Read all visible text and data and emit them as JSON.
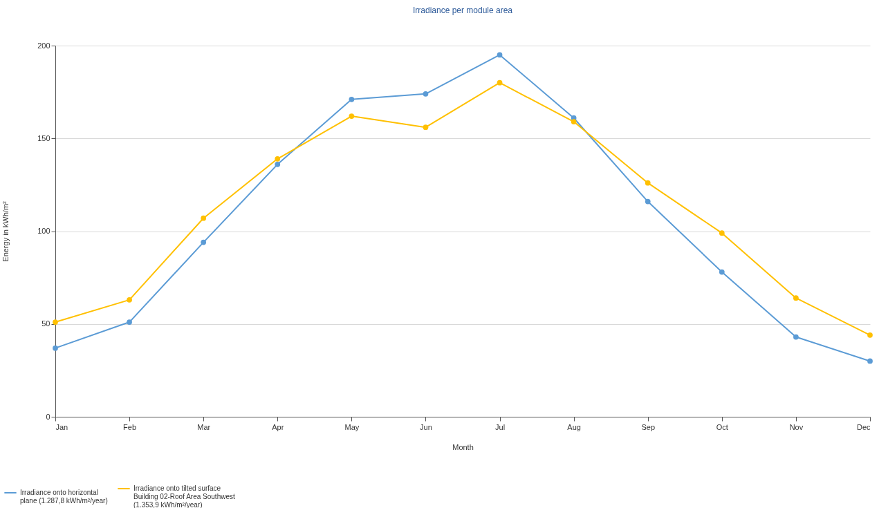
{
  "chart_data": {
    "type": "line",
    "title": "Irradiance per module area",
    "xlabel": "Month",
    "ylabel": "Energy in kWh/m²",
    "categories": [
      "Jan",
      "Feb",
      "Mar",
      "Apr",
      "May",
      "Jun",
      "Jul",
      "Aug",
      "Sep",
      "Oct",
      "Nov",
      "Dec"
    ],
    "series": [
      {
        "name": "Irradiance onto horizontal plane (1.287,8 kWh/m²/year)",
        "color": "#5b9bd5",
        "values": [
          37,
          51,
          94,
          136,
          171,
          174,
          195,
          161,
          116,
          78,
          43,
          30
        ]
      },
      {
        "name": "Irradiance onto tilted surface Building 02-Roof Area Southwest (1.353,9 kWh/m²/year)",
        "color": "#ffc000",
        "values": [
          51,
          63,
          107,
          139,
          162,
          156,
          180,
          159,
          126,
          99,
          64,
          44
        ]
      }
    ],
    "ylim": [
      0,
      200
    ],
    "yticks": [
      0,
      50,
      100,
      150,
      200
    ],
    "grid": "y",
    "legend": "bottom left",
    "marker": "circle",
    "line_style": "solid"
  }
}
